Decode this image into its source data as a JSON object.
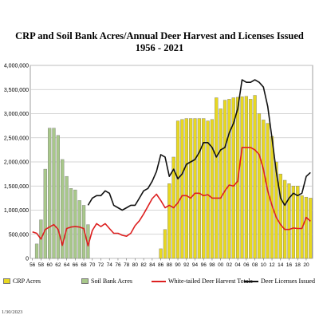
{
  "chart_data": {
    "type": "bar",
    "title": "CRP and Soil Bank Acres/Annual Deer Harvest and Licenses Issued",
    "subtitle": "1956 - 2021",
    "ylim": [
      0,
      4000000
    ],
    "y_ticks": [
      0,
      500000,
      1000000,
      1500000,
      2000000,
      2500000,
      3000000,
      3500000,
      4000000
    ],
    "y_tick_labels": [
      "0",
      "500,000",
      "1,000,000",
      "1,500,000",
      "2,000,000",
      "2,500,000",
      "3,000,000",
      "3,500,000",
      "4,000,000"
    ],
    "x_tick_labels": [
      "56",
      "58",
      "60",
      "62",
      "64",
      "66",
      "68",
      "70",
      "72",
      "74",
      "76",
      "78",
      "80",
      "82",
      "84",
      "86",
      "88",
      "90",
      "92",
      "94",
      "96",
      "98",
      "00",
      "02",
      "04",
      "06",
      "08",
      "10",
      "12",
      "14",
      "16",
      "18",
      "20"
    ],
    "grid": true,
    "legend_position": "bottom",
    "footnote": "1/30/2023",
    "series": [
      {
        "name": "CRP Acres",
        "kind": "bar",
        "color": "#e8d820",
        "years": [
          1986,
          1987,
          1988,
          1989,
          1990,
          1991,
          1992,
          1993,
          1994,
          1995,
          1996,
          1997,
          1998,
          1999,
          2000,
          2001,
          2002,
          2003,
          2004,
          2005,
          2006,
          2007,
          2008,
          2009,
          2010,
          2011,
          2012,
          2013,
          2014,
          2015,
          2016,
          2017,
          2018,
          2019,
          2020,
          2021
        ],
        "values": [
          200000,
          600000,
          1550000,
          2100000,
          2850000,
          2880000,
          2900000,
          2900000,
          2900000,
          2900000,
          2900000,
          2850000,
          2880000,
          3330000,
          3100000,
          3280000,
          3300000,
          3330000,
          3340000,
          3350000,
          3360000,
          3300000,
          3380000,
          3000000,
          2870000,
          2800000,
          2530000,
          2000000,
          1750000,
          1620000,
          1550000,
          1500000,
          1500000,
          1300000,
          1270000,
          1250000
        ]
      },
      {
        "name": "Soil Bank Acres",
        "kind": "bar",
        "color": "#a8c88a",
        "years": [
          1956,
          1957,
          1958,
          1959,
          1960,
          1961,
          1962,
          1963,
          1964,
          1965,
          1966,
          1967,
          1968,
          1969
        ],
        "values": [
          0,
          300000,
          800000,
          1850000,
          2700000,
          2700000,
          2550000,
          2050000,
          1700000,
          1450000,
          1420000,
          1200000,
          1100000,
          700000
        ]
      },
      {
        "name": "White-tailed Deer Harvest Totals",
        "kind": "line",
        "color": "#dd2020",
        "years": [
          1956,
          1957,
          1958,
          1959,
          1960,
          1961,
          1962,
          1963,
          1964,
          1965,
          1966,
          1967,
          1968,
          1969,
          1970,
          1971,
          1972,
          1973,
          1974,
          1975,
          1976,
          1977,
          1978,
          1979,
          1980,
          1981,
          1982,
          1983,
          1984,
          1985,
          1986,
          1987,
          1988,
          1989,
          1990,
          1991,
          1992,
          1993,
          1994,
          1995,
          1996,
          1997,
          1998,
          1999,
          2000,
          2001,
          2002,
          2003,
          2004,
          2005,
          2006,
          2007,
          2008,
          2009,
          2010,
          2011,
          2012,
          2013,
          2014,
          2015,
          2016,
          2017,
          2018,
          2019,
          2020,
          2021
        ],
        "values": [
          550000,
          520000,
          400000,
          600000,
          650000,
          700000,
          600000,
          270000,
          620000,
          650000,
          660000,
          650000,
          620000,
          260000,
          580000,
          720000,
          660000,
          720000,
          620000,
          520000,
          520000,
          480000,
          460000,
          520000,
          680000,
          780000,
          920000,
          1080000,
          1240000,
          1330000,
          1200000,
          1050000,
          1100000,
          1050000,
          1150000,
          1300000,
          1300000,
          1250000,
          1350000,
          1350000,
          1300000,
          1320000,
          1250000,
          1250000,
          1250000,
          1400000,
          1520000,
          1500000,
          1600000,
          2300000,
          2300000,
          2300000,
          2250000,
          2150000,
          1850000,
          1400000,
          1100000,
          850000,
          700000,
          600000,
          600000,
          630000,
          620000,
          620000,
          850000,
          770000
        ]
      },
      {
        "name": "Deer Licenses Issued",
        "kind": "line",
        "color": "#111111",
        "years": [
          1969,
          1970,
          1971,
          1972,
          1973,
          1974,
          1975,
          1976,
          1977,
          1978,
          1979,
          1980,
          1981,
          1982,
          1983,
          1984,
          1985,
          1986,
          1987,
          1988,
          1989,
          1990,
          1991,
          1992,
          1993,
          1994,
          1995,
          1996,
          1997,
          1998,
          1999,
          2000,
          2001,
          2002,
          2003,
          2004,
          2005,
          2006,
          2007,
          2008,
          2009,
          2010,
          2011,
          2012,
          2013,
          2014,
          2015,
          2016,
          2017,
          2018,
          2019,
          2020,
          2021
        ],
        "values": [
          1100000,
          1250000,
          1300000,
          1300000,
          1400000,
          1350000,
          1100000,
          1050000,
          1000000,
          1050000,
          1100000,
          1100000,
          1250000,
          1400000,
          1450000,
          1600000,
          1800000,
          2150000,
          2100000,
          1700000,
          1850000,
          1650000,
          1750000,
          1950000,
          2000000,
          2050000,
          2200000,
          2400000,
          2400000,
          2300000,
          2100000,
          2250000,
          2300000,
          2600000,
          2800000,
          3100000,
          3700000,
          3650000,
          3650000,
          3700000,
          3650000,
          3550000,
          3150000,
          2500000,
          1800000,
          1250000,
          1100000,
          1250000,
          1350000,
          1300000,
          1350000,
          1700000,
          1780000
        ]
      }
    ]
  }
}
